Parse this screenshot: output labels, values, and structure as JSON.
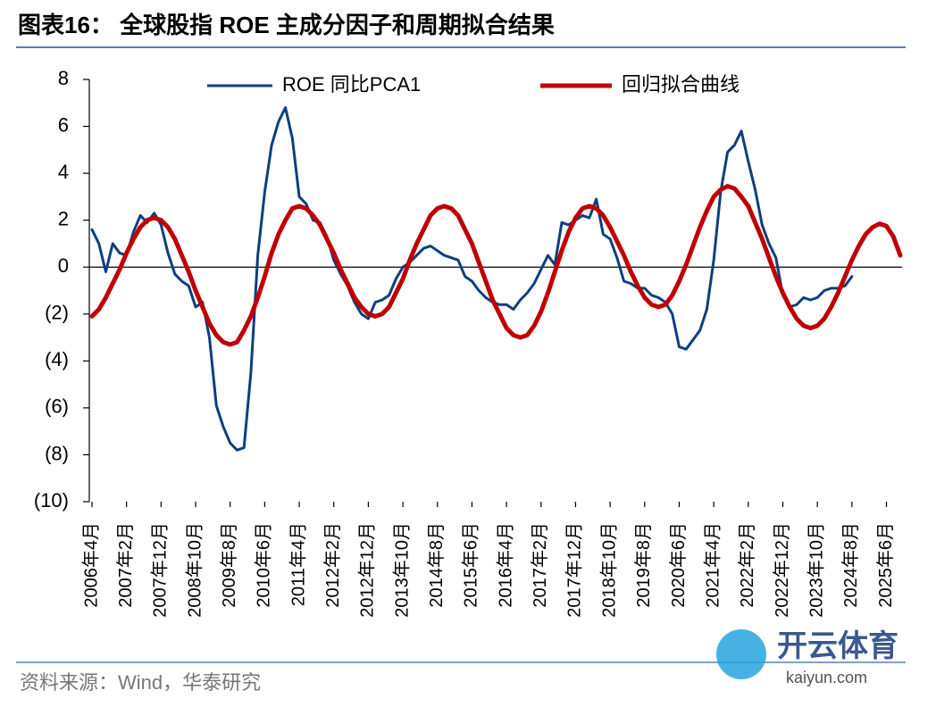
{
  "chart_data": {
    "type": "line",
    "title": "图表16：  全球股指 ROE 主成分因子和周期拟合结果",
    "source": "资料来源：Wind，华泰研究",
    "categories": [
      "2006年4月",
      null,
      null,
      null,
      null,
      "2007年2月",
      null,
      null,
      null,
      null,
      "2007年12月",
      null,
      null,
      null,
      null,
      "2008年10月",
      null,
      null,
      null,
      null,
      "2009年8月",
      null,
      null,
      null,
      null,
      "2010年6月",
      null,
      null,
      null,
      null,
      "2011年4月",
      null,
      null,
      null,
      null,
      "2012年2月",
      null,
      null,
      null,
      null,
      "2012年12月",
      null,
      null,
      null,
      null,
      "2013年10月",
      null,
      null,
      null,
      null,
      "2014年8月",
      null,
      null,
      null,
      null,
      "2015年6月",
      null,
      null,
      null,
      null,
      "2016年4月",
      null,
      null,
      null,
      null,
      "2017年2月",
      null,
      null,
      null,
      null,
      "2017年12月",
      null,
      null,
      null,
      null,
      "2018年10月",
      null,
      null,
      null,
      null,
      "2019年8月",
      null,
      null,
      null,
      null,
      "2020年6月",
      null,
      null,
      null,
      null,
      "2021年4月",
      null,
      null,
      null,
      null,
      "2022年2月",
      null,
      null,
      null,
      null,
      "2022年12月",
      null,
      null,
      null,
      null,
      "2023年10月",
      null,
      null,
      null,
      null,
      "2024年8月",
      null,
      null,
      null,
      null,
      "2025年6月",
      null,
      null
    ],
    "series": [
      {
        "name": "ROE 同比PCA1",
        "color": "#0d3f7f",
        "values": [
          1.6,
          1.0,
          -0.2,
          1.0,
          0.6,
          0.5,
          1.5,
          2.2,
          1.9,
          2.3,
          1.8,
          0.6,
          -0.3,
          -0.6,
          -0.8,
          -1.7,
          -1.5,
          -3.0,
          -5.9,
          -6.8,
          -7.5,
          -7.8,
          -7.7,
          -4.5,
          0.5,
          3.2,
          5.2,
          6.2,
          6.8,
          5.5,
          3.0,
          2.7,
          2.0,
          1.9,
          1.3,
          0.3,
          -0.3,
          -0.8,
          -1.5,
          -2.0,
          -2.2,
          -1.5,
          -1.4,
          -1.2,
          -0.5,
          0.0,
          0.2,
          0.5,
          0.8,
          0.9,
          0.7,
          0.5,
          0.4,
          0.3,
          -0.4,
          -0.6,
          -1.0,
          -1.3,
          -1.5,
          -1.6,
          -1.6,
          -1.8,
          -1.4,
          -1.1,
          -0.7,
          -0.1,
          0.5,
          0.1,
          1.9,
          1.8,
          2.0,
          2.2,
          2.1,
          2.9,
          1.4,
          1.2,
          0.4,
          -0.6,
          -0.7,
          -0.9,
          -0.9,
          -1.2,
          -1.3,
          -1.5,
          -2.0,
          -3.4,
          -3.5,
          -3.1,
          -2.7,
          -1.8,
          0.3,
          3.2,
          4.9,
          5.2,
          5.8,
          4.5,
          3.3,
          1.8,
          1.0,
          0.4,
          -1.2,
          -1.7,
          -1.6,
          -1.3,
          -1.4,
          -1.3,
          -1.0,
          -0.9,
          -0.9,
          -0.8,
          -0.4,
          null,
          null,
          null,
          null,
          null,
          null,
          null
        ]
      },
      {
        "name": "回归拟合曲线",
        "color": "#c00000",
        "values": [
          -2.1,
          -1.8,
          -1.3,
          -0.7,
          -0.1,
          0.6,
          1.2,
          1.7,
          2.0,
          2.1,
          2.0,
          1.7,
          1.2,
          0.5,
          -0.2,
          -1.0,
          -1.7,
          -2.4,
          -2.9,
          -3.2,
          -3.3,
          -3.2,
          -2.7,
          -2.1,
          -1.3,
          -0.4,
          0.6,
          1.4,
          2.0,
          2.5,
          2.6,
          2.5,
          2.2,
          1.8,
          1.2,
          0.6,
          -0.1,
          -0.7,
          -1.3,
          -1.7,
          -2.0,
          -2.1,
          -2.0,
          -1.7,
          -1.1,
          -0.5,
          0.3,
          1.0,
          1.6,
          2.2,
          2.5,
          2.6,
          2.5,
          2.2,
          1.6,
          1.0,
          0.2,
          -0.6,
          -1.4,
          -2.0,
          -2.6,
          -2.9,
          -3.0,
          -2.9,
          -2.5,
          -1.9,
          -1.1,
          -0.2,
          0.7,
          1.5,
          2.1,
          2.5,
          2.6,
          2.5,
          2.2,
          1.7,
          1.1,
          0.5,
          -0.2,
          -0.8,
          -1.3,
          -1.6,
          -1.7,
          -1.6,
          -1.2,
          -0.6,
          0.1,
          0.9,
          1.7,
          2.4,
          3.0,
          3.3,
          3.45,
          3.35,
          3.0,
          2.6,
          1.9,
          1.2,
          0.4,
          -0.4,
          -1.1,
          -1.7,
          -2.2,
          -2.5,
          -2.6,
          -2.5,
          -2.2,
          -1.7,
          -1.1,
          -0.4,
          0.3,
          0.9,
          1.4,
          1.7,
          1.85,
          1.75,
          1.3,
          0.5
        ]
      }
    ],
    "ylim": [
      -10,
      8
    ],
    "yticks": [
      8,
      6,
      4,
      2,
      0,
      {
        "value": -2,
        "label": "(2)"
      },
      {
        "value": -4,
        "label": "(4)"
      },
      {
        "value": -6,
        "label": "(6)"
      },
      {
        "value": -8,
        "label": "(8)"
      },
      {
        "value": -10,
        "label": "(10)"
      }
    ],
    "legend": "top"
  },
  "watermark": {
    "brand": "开云体育",
    "site": "kaiyun.com"
  }
}
